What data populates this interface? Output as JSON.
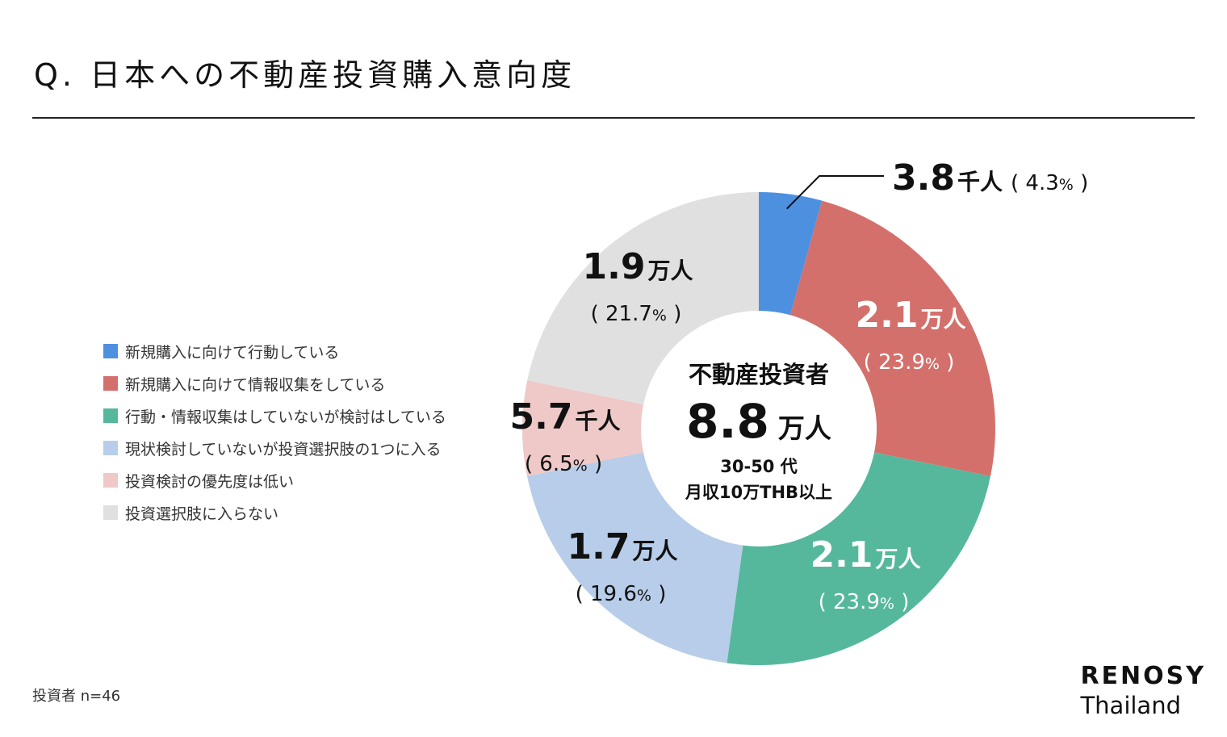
{
  "title": "Q. 日本への不動産投資購入意向度",
  "footnote": "投資者 n=46",
  "brand": {
    "top": "RENOSY",
    "bottom": "Thailand"
  },
  "center": {
    "label": "不動産投資者",
    "value": "8.8",
    "unit": "万人",
    "sub1": "30-50 代",
    "sub2": "月収10万THB以上"
  },
  "chart_data": {
    "type": "pie",
    "categories": [
      "新規購入に向けて行動している",
      "新規購入に向けて情報収集をしている",
      "行動・情報収集はしていないが検討はしている",
      "現状検討していないが投資選択肢の1つに入る",
      "投資検討の優先度は低い",
      "投資選択肢に入らない"
    ],
    "values": [
      4.3,
      23.9,
      23.9,
      19.6,
      6.5,
      21.7
    ],
    "colors": [
      "#4e90e0",
      "#d4706b",
      "#55b89c",
      "#b7cde9",
      "#efc8c8",
      "#e0e0e0"
    ],
    "labels": [
      {
        "value": "3.8",
        "unit": "千人",
        "pct": "4.3"
      },
      {
        "value": "2.1",
        "unit": "万人",
        "pct": "23.9"
      },
      {
        "value": "2.1",
        "unit": "万人",
        "pct": "23.9"
      },
      {
        "value": "1.7",
        "unit": "万人",
        "pct": "19.6"
      },
      {
        "value": "5.7",
        "unit": "千人",
        "pct": "6.5"
      },
      {
        "value": "1.9",
        "unit": "万人",
        "pct": "21.7"
      }
    ],
    "legend": "left"
  }
}
